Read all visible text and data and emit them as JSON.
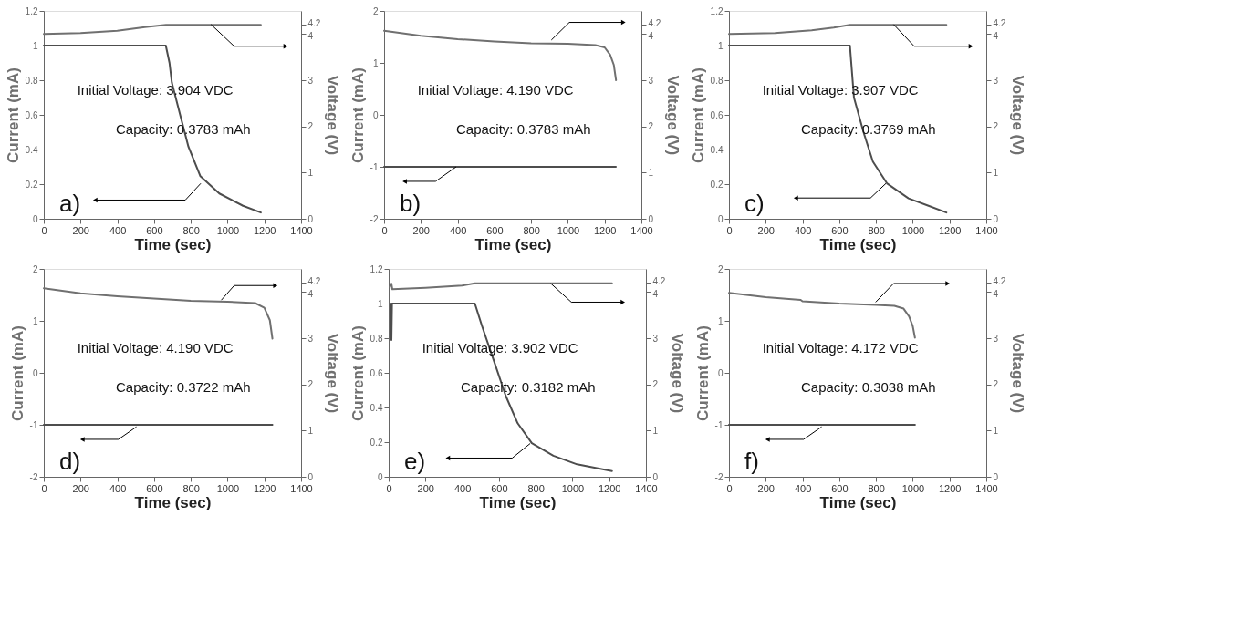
{
  "chart_data": [
    {
      "type": "line",
      "xlabel": "Time (sec)",
      "ylabel": "Current (mA)",
      "y2label": "Voltage (V)",
      "xlim": [
        0,
        1400
      ],
      "xticks": [
        0,
        200,
        400,
        600,
        800,
        1000,
        1200,
        1400
      ],
      "ylim": [
        0,
        1.2
      ],
      "yticks": [
        0,
        0.2,
        0.4,
        0.6,
        0.8,
        1,
        1.2
      ],
      "y2lim": [
        0,
        4.5
      ],
      "y2ticks": [
        0,
        1,
        2,
        3,
        4,
        4.2
      ],
      "legend": false,
      "grid": false,
      "annotations": [
        "a)",
        "Initial Voltage: 3.904 VDC",
        "Capacity: 0.3783 mAh"
      ],
      "series": [
        {
          "color": "#4d4d4d",
          "x": [
            0,
            664,
            684,
            697,
            742,
            787,
            852,
            955,
            1084,
            1181
          ],
          "values": [
            1,
            1,
            0.9,
            0.785,
            0.6,
            0.416,
            0.246,
            0.146,
            0.075,
            0.036
          ]
        },
        {
          "color": "#707070",
          "axis": "y2",
          "x": [
            0,
            200,
            400,
            550,
            665,
            1181
          ],
          "values": [
            4.0,
            4.02,
            4.07,
            4.15,
            4.2,
            4.2
          ]
        }
      ]
    },
    {
      "type": "line",
      "xlabel": "Time (sec)",
      "ylabel": "Current (mA)",
      "y2label": "Voltage (V)",
      "xlim": [
        0,
        1400
      ],
      "xticks": [
        0,
        200,
        400,
        600,
        800,
        1000,
        1200,
        1400
      ],
      "ylim": [
        -2,
        2
      ],
      "yticks": [
        -2,
        -1,
        0,
        1,
        2
      ],
      "y2lim": [
        0,
        4.5
      ],
      "y2ticks": [
        0,
        1,
        2,
        3,
        4,
        4.2
      ],
      "legend": false,
      "grid": false,
      "annotations": [
        "b)",
        "Initial Voltage: 4.190 VDC",
        "Capacity: 0.3783 mAh"
      ],
      "series": [
        {
          "color": "#4d4d4d",
          "x": [
            0,
            1261
          ],
          "values": [
            -1,
            -1
          ]
        },
        {
          "color": "#707070",
          "axis": "y2",
          "x": [
            0,
            200,
            400,
            600,
            800,
            1000,
            1150,
            1200,
            1230,
            1250,
            1262
          ],
          "values": [
            4.07,
            3.96,
            3.89,
            3.84,
            3.8,
            3.79,
            3.76,
            3.71,
            3.55,
            3.33,
            3.0
          ]
        }
      ]
    },
    {
      "type": "line",
      "xlabel": "Time (sec)",
      "ylabel": "Current (mA)",
      "y2label": "Voltage (V)",
      "xlim": [
        0,
        1400
      ],
      "xticks": [
        0,
        200,
        400,
        600,
        800,
        1000,
        1200,
        1400
      ],
      "ylim": [
        0,
        1.2
      ],
      "yticks": [
        0,
        0.2,
        0.4,
        0.6,
        0.8,
        1,
        1.2
      ],
      "y2lim": [
        0,
        4.5
      ],
      "y2ticks": [
        0,
        1,
        2,
        3,
        4,
        4.2
      ],
      "legend": false,
      "grid": false,
      "annotations": [
        "c)",
        "Initial Voltage: 3.907 VDC",
        "Capacity: 0.3769 mAh"
      ],
      "series": [
        {
          "color": "#4d4d4d",
          "x": [
            0,
            658,
            680,
            732,
            783,
            861,
            977,
            1183
          ],
          "values": [
            1,
            1,
            0.7,
            0.5,
            0.33,
            0.203,
            0.118,
            0.036
          ]
        },
        {
          "color": "#707070",
          "axis": "y2",
          "x": [
            0,
            250,
            450,
            570,
            658,
            1183
          ],
          "values": [
            4.0,
            4.02,
            4.08,
            4.14,
            4.2,
            4.2
          ]
        }
      ]
    },
    {
      "type": "line",
      "xlabel": "Time (sec)",
      "ylabel": "Current (mA)",
      "y2label": "Voltage (V)",
      "xlim": [
        0,
        1400
      ],
      "xticks": [
        0,
        200,
        400,
        600,
        800,
        1000,
        1200,
        1400
      ],
      "ylim": [
        -2,
        2
      ],
      "yticks": [
        -2,
        -1,
        0,
        1,
        2
      ],
      "y2lim": [
        0,
        4.5
      ],
      "y2ticks": [
        0,
        1,
        2,
        3,
        4,
        4.2
      ],
      "legend": false,
      "grid": false,
      "annotations": [
        "d)",
        "Initial Voltage: 4.190 VDC",
        "Capacity: 0.3722 mAh"
      ],
      "series": [
        {
          "color": "#4d4d4d",
          "x": [
            0,
            1244
          ],
          "values": [
            -1,
            -1
          ]
        },
        {
          "color": "#707070",
          "axis": "y2",
          "x": [
            0,
            200,
            400,
            600,
            800,
            1000,
            1150,
            1200,
            1230,
            1244
          ],
          "values": [
            4.08,
            3.97,
            3.91,
            3.86,
            3.81,
            3.79,
            3.76,
            3.66,
            3.39,
            2.99
          ]
        }
      ]
    },
    {
      "type": "line",
      "xlabel": "Time (sec)",
      "ylabel": "Current (mA)",
      "y2label": "Voltage (V)",
      "xlim": [
        0,
        1400
      ],
      "xticks": [
        0,
        200,
        400,
        600,
        800,
        1000,
        1200,
        1400
      ],
      "ylim": [
        0,
        1.2
      ],
      "yticks": [
        0,
        0.2,
        0.4,
        0.6,
        0.8,
        1,
        1.2
      ],
      "y2lim": [
        0,
        4.5
      ],
      "y2ticks": [
        0,
        1,
        2,
        3,
        4,
        4.2
      ],
      "legend": false,
      "grid": false,
      "annotations": [
        "e)",
        "Initial Voltage: 3.902 VDC",
        "Capacity: 0.3182 mAh"
      ],
      "series": [
        {
          "color": "#4d4d4d",
          "x": [
            10,
            15,
            18,
            469,
            508,
            573,
            637,
            702,
            779,
            896,
            1025,
            1215
          ],
          "values": [
            1,
            0.79,
            1,
            1,
            0.87,
            0.668,
            0.467,
            0.309,
            0.194,
            0.122,
            0.072,
            0.033
          ]
        },
        {
          "color": "#707070",
          "axis": "y2",
          "x": [
            5,
            15,
            20,
            200,
            400,
            469,
            1215
          ],
          "values": [
            4.11,
            4.18,
            4.06,
            4.09,
            4.14,
            4.19,
            4.19
          ]
        }
      ]
    },
    {
      "type": "line",
      "xlabel": "Time (sec)",
      "ylabel": "Current (mA)",
      "y2label": "Voltage (V)",
      "xlim": [
        0,
        1400
      ],
      "xticks": [
        0,
        200,
        400,
        600,
        800,
        1000,
        1200,
        1400
      ],
      "ylim": [
        -2,
        2
      ],
      "yticks": [
        -2,
        -1,
        0,
        1,
        2
      ],
      "y2lim": [
        0,
        4.5
      ],
      "y2ticks": [
        0,
        1,
        2,
        3,
        4,
        4.2
      ],
      "legend": false,
      "grid": false,
      "annotations": [
        "f)",
        "Initial Voltage: 4.172 VDC",
        "Capacity: 0.3038 mAh"
      ],
      "series": [
        {
          "color": "#4d4d4d",
          "x": [
            0,
            1012
          ],
          "values": [
            -1,
            -1
          ]
        },
        {
          "color": "#707070",
          "axis": "y2",
          "x": [
            0,
            200,
            390,
            400,
            600,
            800,
            900,
            950,
            980,
            1000,
            1012
          ],
          "values": [
            3.98,
            3.89,
            3.83,
            3.8,
            3.75,
            3.72,
            3.7,
            3.64,
            3.47,
            3.26,
            3.01
          ]
        }
      ]
    }
  ]
}
